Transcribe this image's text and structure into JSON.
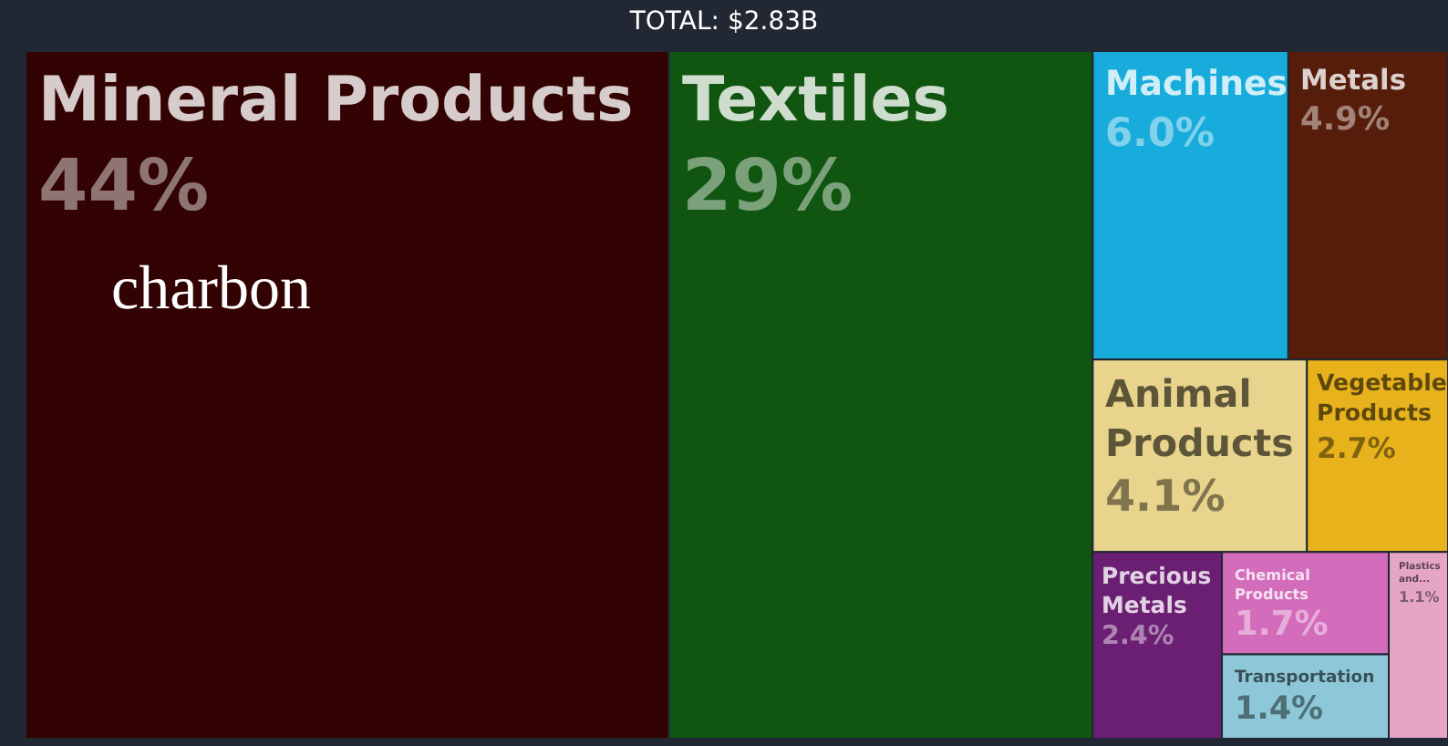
{
  "chart_data": {
    "type": "other",
    "title": "TOTAL: $2.83B",
    "categories": [
      "Mineral Products",
      "Textiles",
      "Machines",
      "Metals",
      "Animal Products",
      "Vegetable Products",
      "Precious Metals",
      "Chemical Products",
      "Plastics and...",
      "Transportation"
    ],
    "values": [
      44,
      29,
      6.0,
      4.9,
      4.1,
      2.7,
      2.4,
      1.7,
      1.1,
      1.4
    ],
    "value_labels": [
      "44%",
      "29%",
      "6.0%",
      "4.9%",
      "4.1%",
      "2.7%",
      "2.4%",
      "1.7%",
      "1.1%",
      "1.4%"
    ],
    "colors": [
      "#330303",
      "#105510",
      "#18acdc",
      "#561d0b",
      "#e8d48c",
      "#e8b21c",
      "#6b1f73",
      "#d46cbc",
      "#e4a6c4",
      "#8ec8d8"
    ],
    "annotations": [
      "charbon"
    ]
  }
}
